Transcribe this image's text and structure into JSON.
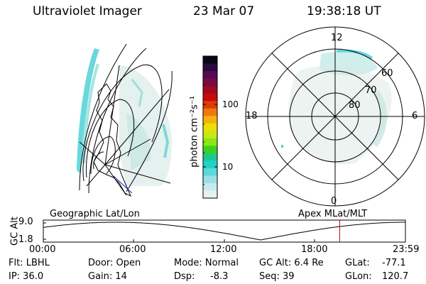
{
  "header": {
    "instrument": "Ultraviolet Imager",
    "date": "23 Mar 07",
    "time": "19:38:18 UT"
  },
  "colorbar": {
    "unit_label": "photon cm⁻²s⁻¹",
    "ticks": [
      "100",
      "10"
    ],
    "colors": [
      "#0a0614",
      "#2a0a3a",
      "#550a55",
      "#7a0a40",
      "#a00a1e",
      "#c80a0a",
      "#e03a06",
      "#f0780a",
      "#f4b20a",
      "#eedc0a",
      "#c8e814",
      "#8ae614",
      "#3cd21e",
      "#1ec88c",
      "#1ed2c8",
      "#5ad8dc",
      "#9ae0e4",
      "#c8eaee",
      "#e6f2f2"
    ]
  },
  "polar_plot": {
    "mlt_labels": [
      "12",
      "18",
      "6",
      "0"
    ],
    "mlat_labels": [
      "60",
      "70",
      "80"
    ]
  },
  "orbit_plot": {
    "left_title": "Geographic Lat/Lon",
    "right_title": "Apex MLat/MLT",
    "y_axis_label": "GC Alt",
    "y_ticks": [
      "9.0",
      "1.8"
    ],
    "x_ticks": [
      "00:00",
      "06:00",
      "12:00",
      "18:00",
      "23:59"
    ],
    "current_time_marker_hours": 19.64
  },
  "status": {
    "flt": "Flt: LBHL",
    "ip": "IP: 36.0",
    "door": "Door: Open",
    "gain": "Gain: 14",
    "mode": "Mode: Normal",
    "dsp_label": "Dsp:",
    "dsp_value": "-8.3",
    "gcalt": "GC Alt: 6.4 Re",
    "seq": "Seq: 39",
    "glat_label": "GLat:",
    "glat_value": "-77.1",
    "glon_label": "GLon:",
    "glon_value": "120.7"
  }
}
